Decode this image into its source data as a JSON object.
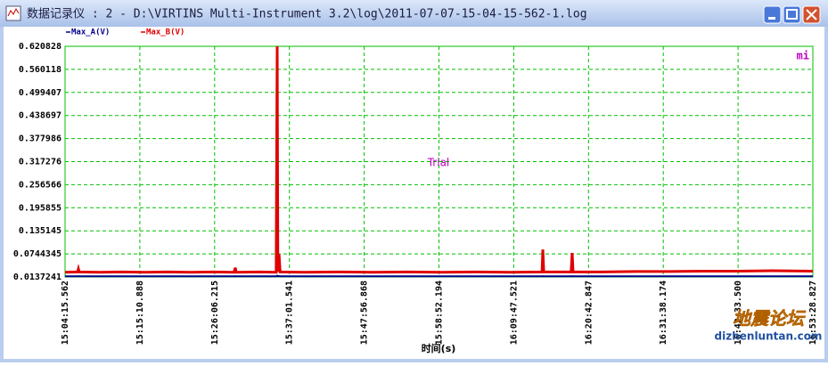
{
  "window": {
    "title": "数据记录仪 : 2 - D:\\VIRTINS Multi-Instrument 3.2\\log\\2011-07-07-15-04-15-562-1.log"
  },
  "chart_data": {
    "type": "line",
    "xlabel": "时间(s)",
    "annotations": [
      "Trial",
      "mi"
    ],
    "x": [
      0,
      100,
      110,
      117,
      124,
      300,
      500,
      700,
      900,
      1100,
      1300,
      1480,
      1492,
      1500,
      1700,
      1850,
      1859,
      1865,
      1875,
      1885,
      2100,
      2400,
      2700,
      3000,
      3300,
      3600,
      3900,
      4180,
      4187,
      4195,
      4435,
      4444,
      4452,
      4700,
      5000,
      5300,
      5600,
      5900,
      6200,
      6553.265
    ],
    "series": [
      {
        "name": "Max_A(V)",
        "color": "#00008b",
        "values": [
          0.0155,
          0.0156,
          0.0155,
          0.0157,
          0.0155,
          0.0154,
          0.0155,
          0.0156,
          0.0155,
          0.0154,
          0.0155,
          0.0156,
          0.0158,
          0.0155,
          0.0154,
          0.0155,
          0.017,
          0.0155,
          0.016,
          0.0155,
          0.0154,
          0.0155,
          0.0156,
          0.0155,
          0.0154,
          0.0155,
          0.0156,
          0.0155,
          0.0158,
          0.0155,
          0.0154,
          0.0157,
          0.0155,
          0.0156,
          0.0155,
          0.0154,
          0.0155,
          0.0156,
          0.0155,
          0.0154
        ]
      },
      {
        "name": "Max_B(V)",
        "color": "#e00000",
        "values": [
          0.026,
          0.027,
          0.027,
          0.035,
          0.027,
          0.026,
          0.027,
          0.026,
          0.027,
          0.026,
          0.027,
          0.026,
          0.038,
          0.026,
          0.027,
          0.026,
          0.620828,
          0.027,
          0.074,
          0.027,
          0.026,
          0.027,
          0.026,
          0.027,
          0.026,
          0.027,
          0.026,
          0.027,
          0.086,
          0.027,
          0.027,
          0.077,
          0.027,
          0.027,
          0.028,
          0.028,
          0.029,
          0.029,
          0.03,
          0.029
        ]
      }
    ],
    "ylim": [
      0.0137241,
      0.620828
    ],
    "yticks": [
      0.0137241,
      0.0744345,
      0.135145,
      0.195855,
      0.256566,
      0.317276,
      0.377986,
      0.438697,
      0.499407,
      0.560118,
      0.620828
    ],
    "xlim": [
      0,
      6553.265
    ],
    "xticks": [
      {
        "value": 0,
        "label": "15:04:15.562"
      },
      {
        "value": 655.326,
        "label": "15:15:10.888"
      },
      {
        "value": 1310.653,
        "label": "15:26:06.215"
      },
      {
        "value": 1965.979,
        "label": "15:37:01.541"
      },
      {
        "value": 2621.306,
        "label": "15:47:56.868"
      },
      {
        "value": 3276.632,
        "label": "15:58:52.194"
      },
      {
        "value": 3931.959,
        "label": "16:09:47.521"
      },
      {
        "value": 4587.285,
        "label": "16:20:42.847"
      },
      {
        "value": 5242.612,
        "label": "16:31:38.174"
      },
      {
        "value": 5897.938,
        "label": "16:42:33.500"
      },
      {
        "value": 6553.265,
        "label": "16:53:28.827"
      }
    ],
    "grid": true
  },
  "watermark": {
    "logo": "地震论坛",
    "site": "dizhenluntan.com"
  }
}
